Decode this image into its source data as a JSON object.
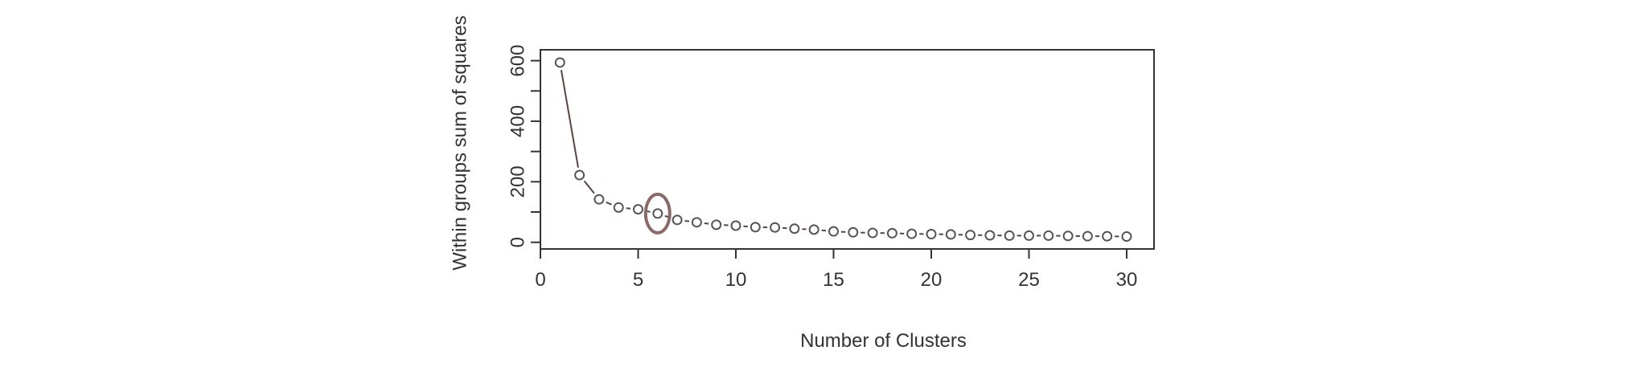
{
  "chart_data": {
    "type": "line",
    "title": "",
    "xlabel": "Number of Clusters",
    "ylabel": "Within groups sum of squares",
    "x": [
      1,
      2,
      3,
      4,
      5,
      6,
      7,
      8,
      9,
      10,
      11,
      12,
      13,
      14,
      15,
      16,
      17,
      18,
      19,
      20,
      21,
      22,
      23,
      24,
      25,
      26,
      27,
      28,
      29,
      30
    ],
    "y": [
      594,
      222,
      142,
      115,
      109,
      95,
      74,
      66,
      58,
      55,
      50,
      49,
      45,
      42,
      36,
      33,
      31,
      30,
      28,
      27,
      26,
      24,
      23,
      22,
      22,
      22,
      21,
      20,
      20,
      19
    ],
    "xlim": [
      0,
      31.4
    ],
    "ylim": [
      -22,
      636
    ],
    "xticks": [
      0,
      5,
      10,
      15,
      20,
      25,
      30
    ],
    "yticks": [
      0,
      200,
      400,
      600
    ],
    "yminor_ticks": [
      100,
      300,
      500
    ],
    "marker": "circle-open",
    "highlight": {
      "x": 6,
      "y": 95,
      "shape": "ellipse",
      "color": "#8a6a68"
    },
    "line_color": "#5a4442",
    "point_color": "#555555",
    "grid": false,
    "legend": "none"
  }
}
